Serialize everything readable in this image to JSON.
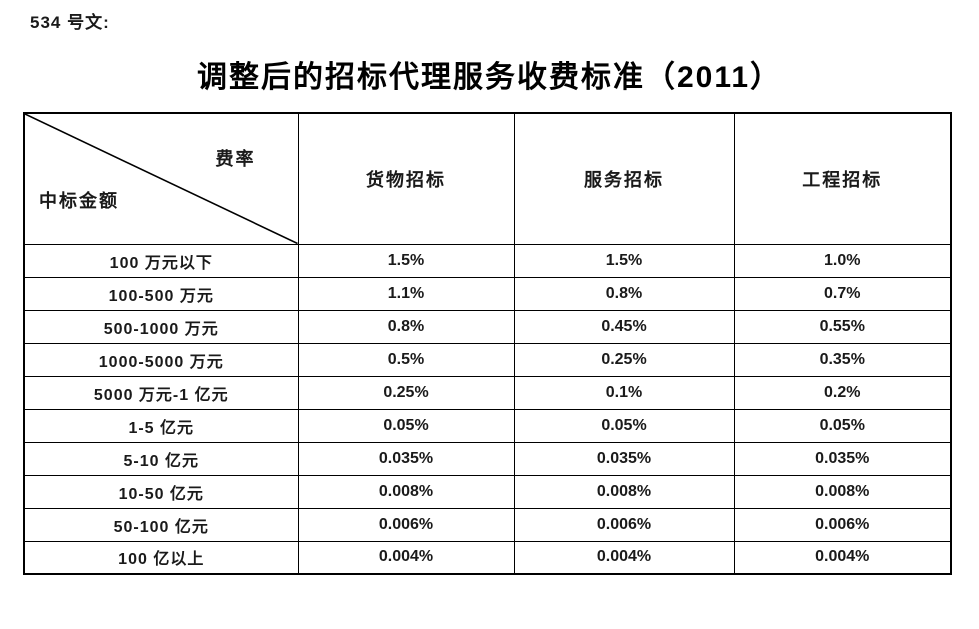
{
  "doc": {
    "doc_number": "534 号文:",
    "title": "调整后的招标代理服务收费标准（2011）"
  },
  "table": {
    "corner": {
      "top_right": "费率",
      "bottom_left": "中标金额"
    },
    "columns": [
      "货物招标",
      "服务招标",
      "工程招标"
    ],
    "rows": [
      {
        "label": "100 万元以下",
        "values": [
          "1.5%",
          "1.5%",
          "1.0%"
        ]
      },
      {
        "label": "100-500 万元",
        "values": [
          "1.1%",
          "0.8%",
          "0.7%"
        ]
      },
      {
        "label": "500-1000 万元",
        "values": [
          "0.8%",
          "0.45%",
          "0.55%"
        ]
      },
      {
        "label": "1000-5000 万元",
        "values": [
          "0.5%",
          "0.25%",
          "0.35%"
        ]
      },
      {
        "label": "5000 万元-1 亿元",
        "values": [
          "0.25%",
          "0.1%",
          "0.2%"
        ]
      },
      {
        "label": "1-5 亿元",
        "values": [
          "0.05%",
          "0.05%",
          "0.05%"
        ]
      },
      {
        "label": "5-10 亿元",
        "values": [
          "0.035%",
          "0.035%",
          "0.035%"
        ]
      },
      {
        "label": "10-50 亿元",
        "values": [
          "0.008%",
          "0.008%",
          "0.008%"
        ]
      },
      {
        "label": "50-100 亿元",
        "values": [
          "0.006%",
          "0.006%",
          "0.006%"
        ]
      },
      {
        "label": "100 亿以上",
        "values": [
          "0.004%",
          "0.004%",
          "0.004%"
        ]
      }
    ]
  },
  "colors": {
    "text": "#1a1a1a",
    "border": "#000000",
    "background": "#ffffff"
  }
}
